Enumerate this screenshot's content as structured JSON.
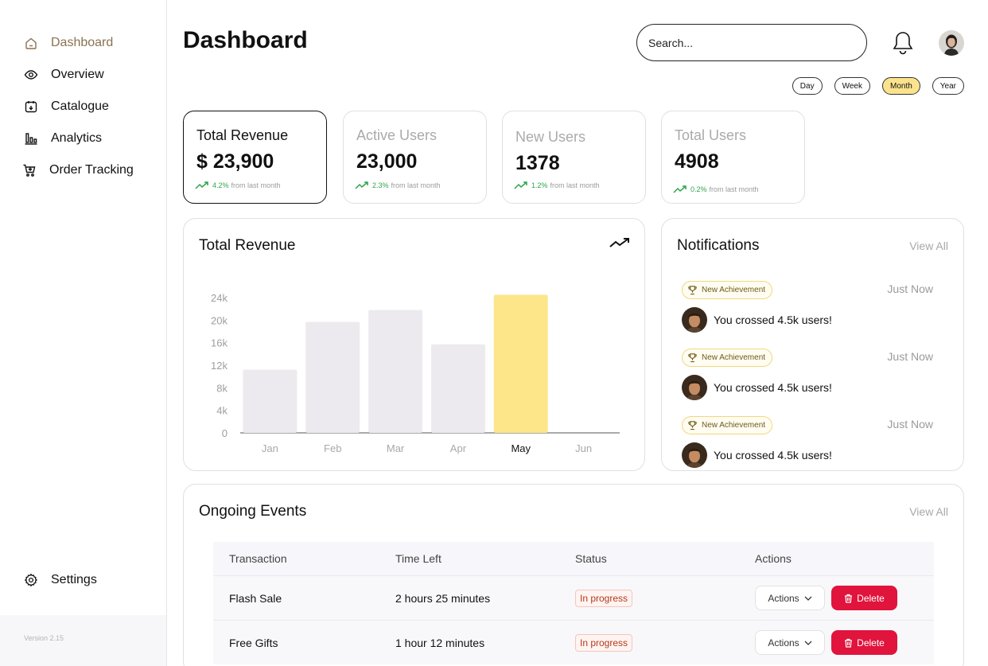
{
  "sidebar": {
    "items": [
      {
        "label": "Dashboard",
        "icon": "home-icon",
        "active": true
      },
      {
        "label": "Overview",
        "icon": "eye-icon",
        "active": false
      },
      {
        "label": "Catalogue",
        "icon": "catalogue-icon",
        "active": false
      },
      {
        "label": "Analytics",
        "icon": "analytics-icon",
        "active": false
      },
      {
        "label": "Order Tracking",
        "icon": "cart-icon",
        "active": false
      }
    ],
    "settings_label": "Settings",
    "version": "Version 2.15"
  },
  "header": {
    "title": "Dashboard",
    "search_placeholder": "Search..."
  },
  "periods": [
    {
      "label": "Day",
      "active": false
    },
    {
      "label": "Week",
      "active": false
    },
    {
      "label": "Month",
      "active": true
    },
    {
      "label": "Year",
      "active": false
    }
  ],
  "stats": [
    {
      "label": "Total Revenue",
      "value": "$ 23,900",
      "pct": "4.2%",
      "suffix": "from last month"
    },
    {
      "label": "Active Users",
      "value": "23,000",
      "pct": "2.3%",
      "suffix": "from last month"
    },
    {
      "label": "New Users",
      "value": "1378",
      "pct": "1.2%",
      "suffix": "from last month"
    },
    {
      "label": "Total Users",
      "value": "4908",
      "pct": "0.2%",
      "suffix": "from last month"
    }
  ],
  "revenue_panel": {
    "title": "Total Revenue"
  },
  "chart_data": {
    "type": "bar",
    "title": "Total Revenue",
    "categories": [
      "Jan",
      "Feb",
      "Mar",
      "Apr",
      "May",
      "Jun"
    ],
    "values": [
      11200,
      19700,
      21800,
      15700,
      24500,
      0
    ],
    "highlight": "May",
    "yticks": [
      "0",
      "4k",
      "8k",
      "12k",
      "16k",
      "20k",
      "24k"
    ],
    "ylim": [
      0,
      24000
    ],
    "bar_color": "#eceaee",
    "highlight_color": "#fde58a"
  },
  "notifications": {
    "title": "Notifications",
    "view_all": "View All",
    "items": [
      {
        "badge": "New Achievement",
        "time": "Just Now",
        "message": "You crossed 4.5k users!"
      },
      {
        "badge": "New Achievement",
        "time": "Just Now",
        "message": "You crossed 4.5k users!"
      },
      {
        "badge": "New Achievement",
        "time": "Just Now",
        "message": "You crossed 4.5k users!"
      }
    ]
  },
  "events": {
    "title": "Ongoing Events",
    "view_all": "View All",
    "columns": [
      "Transaction",
      "Time Left",
      "Status",
      "Actions"
    ],
    "rows": [
      {
        "transaction": "Flash Sale",
        "time_left": "2 hours 25 minutes",
        "status": "In progress",
        "actions_label": "Actions",
        "delete_label": "Delete"
      },
      {
        "transaction": "Free Gifts",
        "time_left": "1 hour 12 minutes",
        "status": "In progress",
        "actions_label": "Actions",
        "delete_label": "Delete"
      }
    ]
  },
  "colors": {
    "accent": "#8a7250",
    "highlight": "#fbe38e",
    "positive": "#2ea44f",
    "danger": "#e0143c"
  }
}
